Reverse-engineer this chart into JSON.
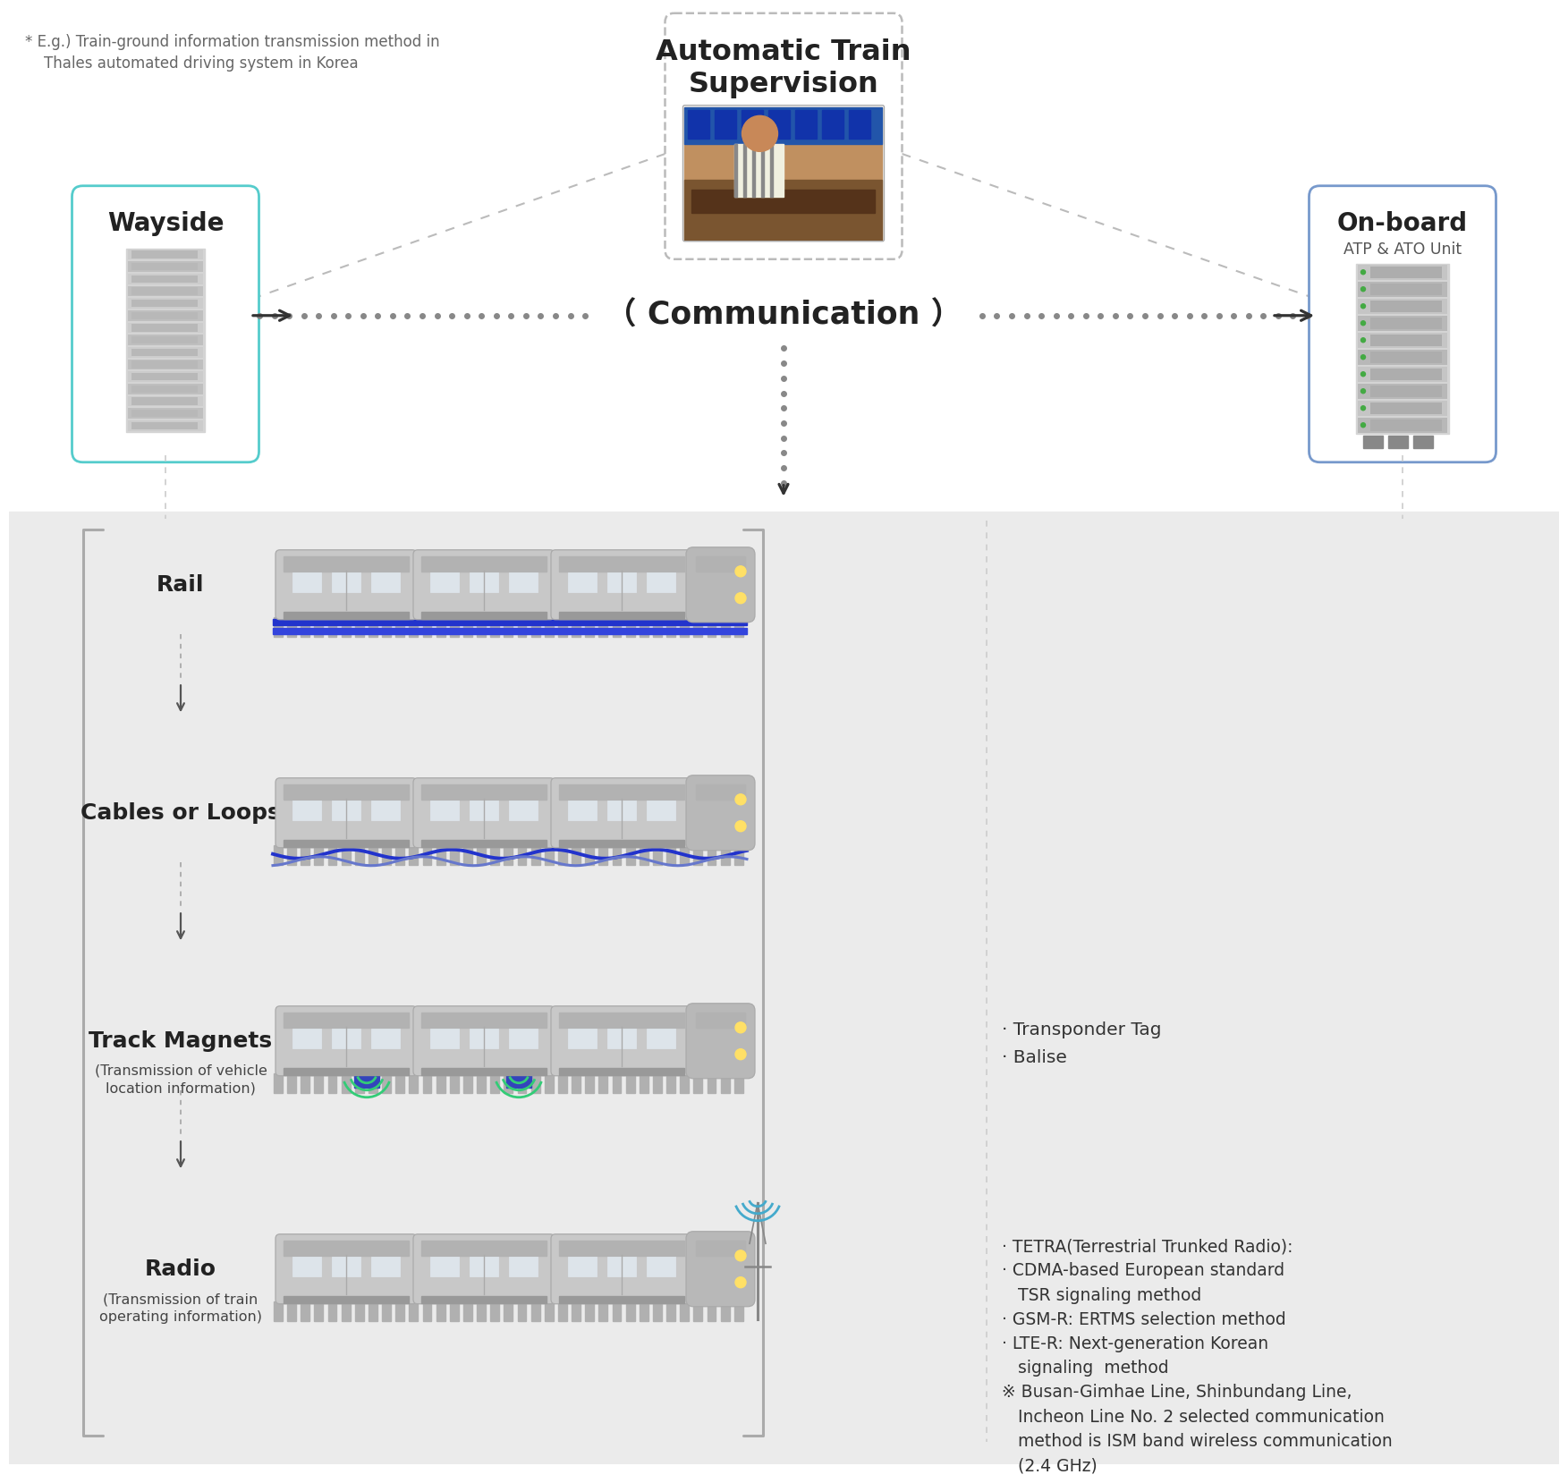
{
  "bg_white": "#ffffff",
  "bg_gray": "#ebebeb",
  "note_line1": "* E.g.) Train-ground information transmission method in",
  "note_line2": "    Thales automated driving system in Korea",
  "ats_title": "Automatic Train\nSupervision",
  "wayside_title": "Wayside",
  "onboard_title": "On-board",
  "onboard_subtitle": "ATP & ATO Unit",
  "comm_label": "（ Communication ）",
  "wayside_border": "#55cccc",
  "onboard_border": "#7799cc",
  "ats_border": "#bbbbbb",
  "dot_color": "#888888",
  "rail_labels": [
    "Rail",
    "Cables or Loops",
    "Track Magnets",
    "Radio"
  ],
  "rail_sublabels": [
    "",
    "",
    "(Transmission of vehicle\nlocation information)",
    "(Transmission of train\noperating information)"
  ],
  "track_magnet_notes": "· Transponder Tag\n· Balise",
  "radio_notes_lines": [
    "· TETRA(Terrestrial Trunked Radio):",
    "· CDMA-based European standard",
    "   TSR signaling method",
    "· GSM-R: ERTMS selection method",
    "· LTE-R: Next-generation Korean",
    "   signaling  method",
    "※ Busan-Gimhae Line, Shinbundang Line,",
    "   Incheon Line No. 2 selected communication",
    "   method is ISM band wireless communication",
    "   (2.4 GHz)"
  ]
}
